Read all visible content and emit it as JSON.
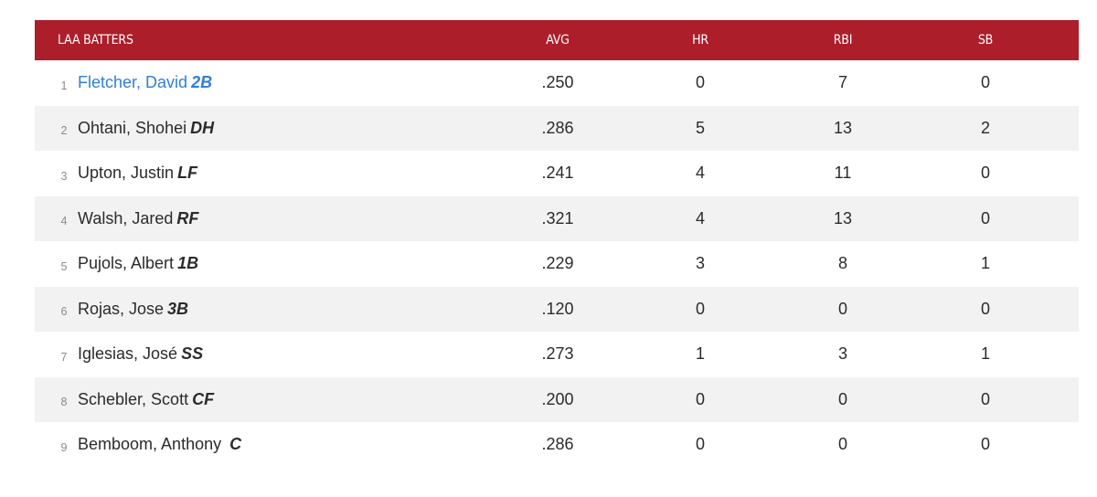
{
  "table": {
    "headers": {
      "player": "LAA BATTERS",
      "avg": "AVG",
      "hr": "HR",
      "rbi": "RBI",
      "sb": "SB"
    },
    "rows": [
      {
        "num": "1",
        "name": "Fletcher, David",
        "pos": "2B",
        "avg": ".250",
        "hr": "0",
        "rbi": "7",
        "sb": "0"
      },
      {
        "num": "2",
        "name": "Ohtani, Shohei",
        "pos": "DH",
        "avg": ".286",
        "hr": "5",
        "rbi": "13",
        "sb": "2"
      },
      {
        "num": "3",
        "name": "Upton, Justin",
        "pos": "LF",
        "avg": ".241",
        "hr": "4",
        "rbi": "11",
        "sb": "0"
      },
      {
        "num": "4",
        "name": "Walsh, Jared",
        "pos": "RF",
        "avg": ".321",
        "hr": "4",
        "rbi": "13",
        "sb": "0"
      },
      {
        "num": "5",
        "name": "Pujols, Albert",
        "pos": "1B",
        "avg": ".229",
        "hr": "3",
        "rbi": "8",
        "sb": "1"
      },
      {
        "num": "6",
        "name": "Rojas, Jose",
        "pos": "3B",
        "avg": ".120",
        "hr": "0",
        "rbi": "0",
        "sb": "0"
      },
      {
        "num": "7",
        "name": "Iglesias, José",
        "pos": "SS",
        "avg": ".273",
        "hr": "1",
        "rbi": "3",
        "sb": "1"
      },
      {
        "num": "8",
        "name": "Schebler, Scott",
        "pos": "CF",
        "avg": ".200",
        "hr": "0",
        "rbi": "0",
        "sb": "0"
      },
      {
        "num": "9",
        "name": "Bemboom, Anthony",
        "pos": "C",
        "avg": ".286",
        "hr": "0",
        "rbi": "0",
        "sb": "0"
      }
    ]
  },
  "colors": {
    "header_bg": "#ab1e2a",
    "link": "#2f7fd8",
    "row_alt": "#f2f2f2"
  }
}
